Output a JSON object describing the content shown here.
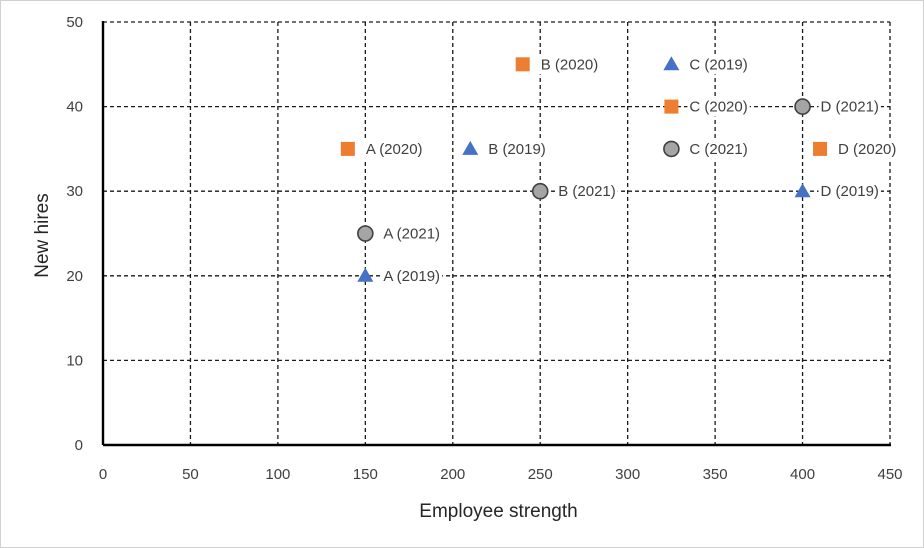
{
  "chart_data": {
    "type": "scatter",
    "title": "",
    "xlabel": "Employee strength",
    "ylabel": "New hires",
    "xlim": [
      0,
      450
    ],
    "ylim": [
      0,
      50
    ],
    "xticks": [
      0,
      50,
      100,
      150,
      200,
      250,
      300,
      350,
      400,
      450
    ],
    "yticks": [
      0,
      10,
      20,
      30,
      40,
      50
    ],
    "grid": true,
    "grid_style": "dashed",
    "series": [
      {
        "marker": "triangle",
        "color": "#4472C4",
        "points": [
          {
            "label": "A (2019)",
            "x": 150,
            "y": 20
          },
          {
            "label": "B (2019)",
            "x": 210,
            "y": 35
          },
          {
            "label": "C (2019)",
            "x": 325,
            "y": 45
          },
          {
            "label": "D (2019)",
            "x": 400,
            "y": 30
          }
        ]
      },
      {
        "marker": "square",
        "color": "#ED7D31",
        "points": [
          {
            "label": "A (2020)",
            "x": 140,
            "y": 35
          },
          {
            "label": "B (2020)",
            "x": 240,
            "y": 45
          },
          {
            "label": "C (2020)",
            "x": 325,
            "y": 40
          },
          {
            "label": "D (2020)",
            "x": 410,
            "y": 35
          }
        ]
      },
      {
        "marker": "circle",
        "color": "#A5A5A5",
        "points": [
          {
            "label": "A (2021)",
            "x": 150,
            "y": 25
          },
          {
            "label": "B (2021)",
            "x": 250,
            "y": 30
          },
          {
            "label": "C (2021)",
            "x": 325,
            "y": 35
          },
          {
            "label": "D (2021)",
            "x": 400,
            "y": 40
          }
        ]
      }
    ]
  }
}
